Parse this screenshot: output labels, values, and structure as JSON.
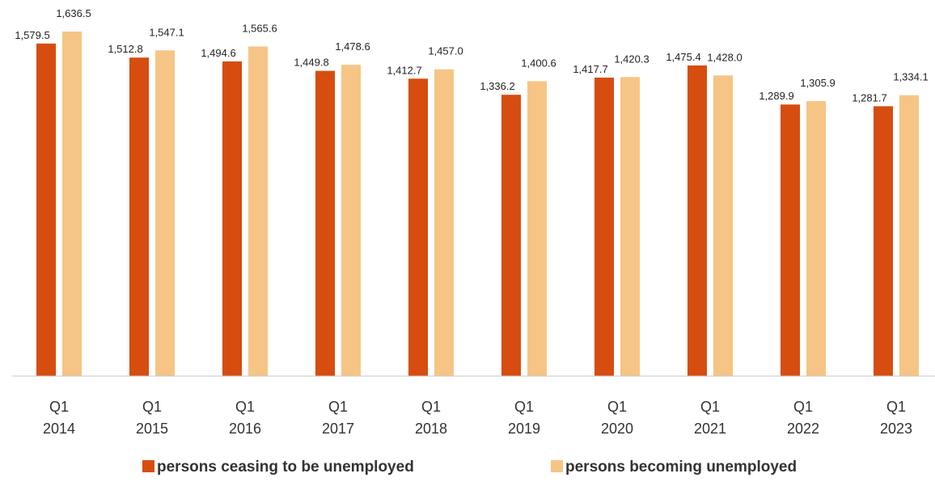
{
  "chart_data": {
    "type": "bar",
    "title": "",
    "xlabel": "",
    "ylabel": "",
    "categories": [
      [
        "Q1",
        "2014"
      ],
      [
        "Q1",
        "2015"
      ],
      [
        "Q1",
        "2016"
      ],
      [
        "Q1",
        "2017"
      ],
      [
        "Q1",
        "2018"
      ],
      [
        "Q1",
        "2019"
      ],
      [
        "Q1",
        "2020"
      ],
      [
        "Q1",
        "2021"
      ],
      [
        "Q1",
        "2022"
      ],
      [
        "Q1",
        "2023"
      ]
    ],
    "series": [
      {
        "name": "persons ceasing to be unemployed",
        "color": "#d64d0f",
        "values": [
          1579.5,
          1512.8,
          1494.6,
          1449.8,
          1412.7,
          1336.2,
          1417.7,
          1475.4,
          1289.9,
          1281.7
        ],
        "labels": [
          "1,579.5",
          "1,512.8",
          "1,494.6",
          "1,449.8",
          "1,412.7",
          "1,336.2",
          "1,417.7",
          "1,475.4",
          "1,289.9",
          "1,281.7"
        ]
      },
      {
        "name": "persons becoming unemployed",
        "color": "#f6c585",
        "values": [
          1636.5,
          1547.1,
          1565.6,
          1478.6,
          1457.0,
          1400.6,
          1420.3,
          1428.0,
          1305.9,
          1334.1
        ],
        "labels": [
          "1,636.5",
          "1,547.1",
          "1,565.6",
          "1,478.6",
          "1,457.0",
          "1,400.6",
          "1,420.3",
          "1,428.0",
          "1,305.9",
          "1,334.1"
        ]
      }
    ],
    "ylim": [
      0,
      1650
    ],
    "grid": false,
    "legend_position": "bottom"
  }
}
